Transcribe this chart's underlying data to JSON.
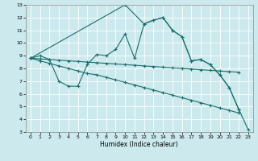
{
  "title": "",
  "xlabel": "Humidex (Indice chaleur)",
  "bg_color": "#cce9ed",
  "grid_color": "#ffffff",
  "line_color": "#1a6e6a",
  "xlim": [
    -0.5,
    23.5
  ],
  "ylim": [
    3,
    13
  ],
  "xticks": [
    0,
    1,
    2,
    3,
    4,
    5,
    6,
    7,
    8,
    9,
    10,
    11,
    12,
    13,
    14,
    15,
    16,
    17,
    18,
    19,
    20,
    21,
    22,
    23
  ],
  "yticks": [
    3,
    4,
    5,
    6,
    7,
    8,
    9,
    10,
    11,
    12,
    13
  ],
  "line1_x": [
    0,
    1,
    2,
    3,
    4,
    5,
    6,
    7,
    8,
    9,
    10,
    11,
    12,
    13,
    14,
    15,
    16,
    17,
    18,
    19,
    20,
    21,
    22
  ],
  "line1_y": [
    8.8,
    9.0,
    8.7,
    7.0,
    6.6,
    6.6,
    8.3,
    9.1,
    9.0,
    9.5,
    10.7,
    8.8,
    11.5,
    11.8,
    12.0,
    11.0,
    10.5,
    8.6,
    8.7,
    8.3,
    7.5,
    6.5,
    4.8
  ],
  "line2_x": [
    0,
    1,
    2,
    3,
    4,
    5,
    6,
    7,
    8,
    9,
    10,
    11,
    12,
    13,
    14,
    15,
    16,
    17,
    18,
    19,
    20,
    21,
    22
  ],
  "line2_y": [
    8.8,
    8.75,
    8.7,
    8.65,
    8.6,
    8.55,
    8.5,
    8.45,
    8.4,
    8.35,
    8.3,
    8.25,
    8.2,
    8.15,
    8.1,
    8.05,
    8.0,
    7.95,
    7.9,
    7.85,
    7.8,
    7.75,
    7.7
  ],
  "line3_x": [
    0,
    1,
    2,
    3,
    4,
    5,
    6,
    7,
    8,
    9,
    10,
    11,
    12,
    13,
    14,
    15,
    16,
    17,
    18,
    19,
    20,
    21,
    22
  ],
  "line3_y": [
    8.8,
    8.6,
    8.4,
    8.2,
    8.0,
    7.8,
    7.6,
    7.5,
    7.3,
    7.1,
    6.9,
    6.7,
    6.5,
    6.3,
    6.1,
    5.9,
    5.7,
    5.5,
    5.3,
    5.1,
    4.9,
    4.7,
    4.5
  ],
  "line4_x": [
    0,
    10,
    12,
    13,
    14,
    15,
    16,
    17,
    18,
    19,
    20,
    21,
    22,
    23
  ],
  "line4_y": [
    8.8,
    13.0,
    11.5,
    11.8,
    12.0,
    11.0,
    10.5,
    8.6,
    8.7,
    8.3,
    7.5,
    6.5,
    4.8,
    3.2
  ]
}
